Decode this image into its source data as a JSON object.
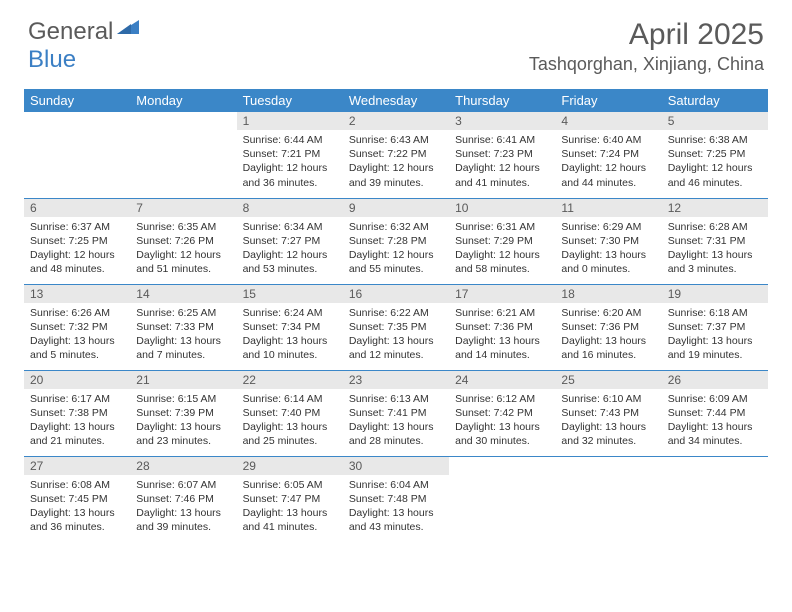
{
  "brand": {
    "text1": "General",
    "text2": "Blue",
    "text1_color": "#5a5a5a",
    "text2_color": "#3b7fc4",
    "icon_color": "#3b7fc4"
  },
  "title": "April 2025",
  "location": "Tashqorghan, Xinjiang, China",
  "colors": {
    "header_bg": "#3b87c8",
    "header_text": "#ffffff",
    "daynum_bg": "#e8e8e8",
    "daynum_text": "#5a5a5a",
    "border": "#3b87c8",
    "body_text": "#333333",
    "title_text": "#5a5a5a"
  },
  "weekdays": [
    "Sunday",
    "Monday",
    "Tuesday",
    "Wednesday",
    "Thursday",
    "Friday",
    "Saturday"
  ],
  "first_weekday_index": 2,
  "days": [
    {
      "n": 1,
      "sunrise": "6:44 AM",
      "sunset": "7:21 PM",
      "daylight": "12 hours and 36 minutes."
    },
    {
      "n": 2,
      "sunrise": "6:43 AM",
      "sunset": "7:22 PM",
      "daylight": "12 hours and 39 minutes."
    },
    {
      "n": 3,
      "sunrise": "6:41 AM",
      "sunset": "7:23 PM",
      "daylight": "12 hours and 41 minutes."
    },
    {
      "n": 4,
      "sunrise": "6:40 AM",
      "sunset": "7:24 PM",
      "daylight": "12 hours and 44 minutes."
    },
    {
      "n": 5,
      "sunrise": "6:38 AM",
      "sunset": "7:25 PM",
      "daylight": "12 hours and 46 minutes."
    },
    {
      "n": 6,
      "sunrise": "6:37 AM",
      "sunset": "7:25 PM",
      "daylight": "12 hours and 48 minutes."
    },
    {
      "n": 7,
      "sunrise": "6:35 AM",
      "sunset": "7:26 PM",
      "daylight": "12 hours and 51 minutes."
    },
    {
      "n": 8,
      "sunrise": "6:34 AM",
      "sunset": "7:27 PM",
      "daylight": "12 hours and 53 minutes."
    },
    {
      "n": 9,
      "sunrise": "6:32 AM",
      "sunset": "7:28 PM",
      "daylight": "12 hours and 55 minutes."
    },
    {
      "n": 10,
      "sunrise": "6:31 AM",
      "sunset": "7:29 PM",
      "daylight": "12 hours and 58 minutes."
    },
    {
      "n": 11,
      "sunrise": "6:29 AM",
      "sunset": "7:30 PM",
      "daylight": "13 hours and 0 minutes."
    },
    {
      "n": 12,
      "sunrise": "6:28 AM",
      "sunset": "7:31 PM",
      "daylight": "13 hours and 3 minutes."
    },
    {
      "n": 13,
      "sunrise": "6:26 AM",
      "sunset": "7:32 PM",
      "daylight": "13 hours and 5 minutes."
    },
    {
      "n": 14,
      "sunrise": "6:25 AM",
      "sunset": "7:33 PM",
      "daylight": "13 hours and 7 minutes."
    },
    {
      "n": 15,
      "sunrise": "6:24 AM",
      "sunset": "7:34 PM",
      "daylight": "13 hours and 10 minutes."
    },
    {
      "n": 16,
      "sunrise": "6:22 AM",
      "sunset": "7:35 PM",
      "daylight": "13 hours and 12 minutes."
    },
    {
      "n": 17,
      "sunrise": "6:21 AM",
      "sunset": "7:36 PM",
      "daylight": "13 hours and 14 minutes."
    },
    {
      "n": 18,
      "sunrise": "6:20 AM",
      "sunset": "7:36 PM",
      "daylight": "13 hours and 16 minutes."
    },
    {
      "n": 19,
      "sunrise": "6:18 AM",
      "sunset": "7:37 PM",
      "daylight": "13 hours and 19 minutes."
    },
    {
      "n": 20,
      "sunrise": "6:17 AM",
      "sunset": "7:38 PM",
      "daylight": "13 hours and 21 minutes."
    },
    {
      "n": 21,
      "sunrise": "6:15 AM",
      "sunset": "7:39 PM",
      "daylight": "13 hours and 23 minutes."
    },
    {
      "n": 22,
      "sunrise": "6:14 AM",
      "sunset": "7:40 PM",
      "daylight": "13 hours and 25 minutes."
    },
    {
      "n": 23,
      "sunrise": "6:13 AM",
      "sunset": "7:41 PM",
      "daylight": "13 hours and 28 minutes."
    },
    {
      "n": 24,
      "sunrise": "6:12 AM",
      "sunset": "7:42 PM",
      "daylight": "13 hours and 30 minutes."
    },
    {
      "n": 25,
      "sunrise": "6:10 AM",
      "sunset": "7:43 PM",
      "daylight": "13 hours and 32 minutes."
    },
    {
      "n": 26,
      "sunrise": "6:09 AM",
      "sunset": "7:44 PM",
      "daylight": "13 hours and 34 minutes."
    },
    {
      "n": 27,
      "sunrise": "6:08 AM",
      "sunset": "7:45 PM",
      "daylight": "13 hours and 36 minutes."
    },
    {
      "n": 28,
      "sunrise": "6:07 AM",
      "sunset": "7:46 PM",
      "daylight": "13 hours and 39 minutes."
    },
    {
      "n": 29,
      "sunrise": "6:05 AM",
      "sunset": "7:47 PM",
      "daylight": "13 hours and 41 minutes."
    },
    {
      "n": 30,
      "sunrise": "6:04 AM",
      "sunset": "7:48 PM",
      "daylight": "13 hours and 43 minutes."
    }
  ],
  "labels": {
    "sunrise": "Sunrise:",
    "sunset": "Sunset:",
    "daylight": "Daylight:"
  }
}
